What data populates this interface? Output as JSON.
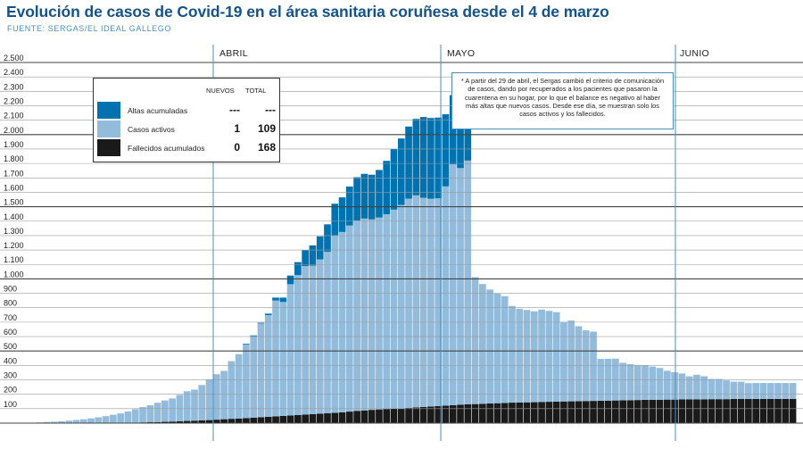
{
  "title": "Evolución de casos de Covid-19 en el área sanitaria coruñesa desde el 4 de marzo",
  "source": "FUENTE: SERGAS/EL IDEAL GALLEGO",
  "months": [
    {
      "label": "ABRIL"
    },
    {
      "label": "MAYO"
    },
    {
      "label": "JUNIO"
    }
  ],
  "legend": {
    "header_new": "NUEVOS",
    "header_total": "TOTAL",
    "rows": [
      {
        "label": "Altas acumuladas",
        "new": "---",
        "total": "---",
        "color": "#0072b0"
      },
      {
        "label": "Casos activos",
        "new": "1",
        "total": "109",
        "color": "#93bbdc"
      },
      {
        "label": "Fallecidos acumulados",
        "new": "0",
        "total": "168",
        "color": "#1a1a1a"
      }
    ]
  },
  "note": "* A partir del 29 de abril, el Sergas cambió el criterio de comunicación de casos, dando por recuperados a los pacientes que pasaron la cuarentena en su hogar, por lo que el balance es negativo al haber más altas que nuevos casos. Desde ese día, se muestran solo los casos activos y los fallecidos.",
  "colors": {
    "altas": "#0072b0",
    "activos": "#93bbdc",
    "fallecidos": "#1a1a1a",
    "grid": "#9a9a9a",
    "month_line": "#4a8ec0"
  },
  "chart_data": {
    "type": "bar",
    "stacked": true,
    "x_start_date": "4 de marzo",
    "ylim": [
      0,
      2500
    ],
    "yticks": [
      "100",
      "200",
      "300",
      "400",
      "500",
      "600",
      "700",
      "800",
      "900",
      "1.000",
      "1.100",
      "1.200",
      "1.300",
      "1.400",
      "1.500",
      "1.600",
      "1.700",
      "1.800",
      "1.900",
      "2.000",
      "2.100",
      "2.200",
      "2.300",
      "2.400",
      "2.500"
    ],
    "month_markers": [
      {
        "label": "ABRIL",
        "day_index": 28
      },
      {
        "label": "MAYO",
        "day_index": 58
      },
      {
        "label": "JUNIO",
        "day_index": 89
      }
    ],
    "series": [
      {
        "name": "Fallecidos acumulados",
        "values": [
          0,
          0,
          0,
          0,
          0,
          0,
          0,
          0,
          0,
          0,
          1,
          2,
          2,
          3,
          4,
          5,
          6,
          7,
          9,
          11,
          13,
          15,
          17,
          19,
          21,
          24,
          27,
          30,
          32,
          35,
          38,
          41,
          44,
          47,
          50,
          53,
          56,
          59,
          62,
          65,
          68,
          71,
          75,
          80,
          85,
          88,
          92,
          95,
          98,
          100,
          103,
          106,
          109,
          112,
          115,
          118,
          121,
          124,
          128,
          130,
          132,
          134,
          136,
          138,
          140,
          142,
          143,
          144,
          145,
          147,
          148,
          149,
          150,
          151,
          152,
          153,
          154,
          155,
          156,
          157,
          158,
          159,
          160,
          161,
          162,
          162,
          163,
          163,
          164,
          164,
          165,
          165,
          166,
          166,
          166,
          167,
          167,
          167,
          168,
          168,
          168,
          168,
          168,
          168
        ]
      },
      {
        "name": "Casos activos",
        "values": [
          3,
          5,
          8,
          10,
          13,
          17,
          22,
          27,
          33,
          40,
          47,
          56,
          65,
          78,
          92,
          106,
          118,
          134,
          148,
          160,
          183,
          206,
          215,
          245,
          283,
          315,
          335,
          400,
          446,
          510,
          565,
          650,
          705,
          803,
          790,
          910,
          970,
          1030,
          1030,
          1070,
          1120,
          1230,
          1250,
          1290,
          1320,
          1330,
          1320,
          1330,
          1350,
          1380,
          1410,
          1450,
          1470,
          1450,
          1440,
          1440,
          1520,
          1670,
          1640,
          1690,
          880,
          830,
          790,
          760,
          740,
          670,
          650,
          640,
          630,
          640,
          630,
          620,
          550,
          560,
          520,
          490,
          480,
          290,
          290,
          290,
          260,
          250,
          240,
          240,
          230,
          220,
          200,
          190,
          180,
          160,
          170,
          160,
          140,
          140,
          130,
          120,
          120,
          110,
          110,
          110,
          110,
          110,
          110,
          110
        ]
      },
      {
        "name": "Altas acumuladas",
        "values": [
          0,
          0,
          0,
          0,
          0,
          0,
          0,
          0,
          0,
          0,
          0,
          0,
          0,
          0,
          0,
          0,
          0,
          0,
          0,
          0,
          0,
          0,
          0,
          0,
          0,
          0,
          0,
          0,
          0,
          5,
          5,
          5,
          10,
          20,
          30,
          60,
          90,
          110,
          140,
          160,
          190,
          220,
          240,
          270,
          300,
          310,
          310,
          330,
          370,
          420,
          460,
          500,
          530,
          560,
          560,
          560,
          500,
          480,
          520,
          500,
          0,
          0,
          0,
          0,
          0,
          0,
          0,
          0,
          0,
          0,
          0,
          0,
          0,
          0,
          0,
          0,
          0,
          0,
          0,
          0,
          0,
          0,
          0,
          0,
          0,
          0,
          0,
          0,
          0,
          0,
          0,
          0,
          0,
          0,
          0,
          0,
          0,
          0,
          0,
          0,
          0,
          0,
          0,
          0
        ]
      }
    ]
  }
}
